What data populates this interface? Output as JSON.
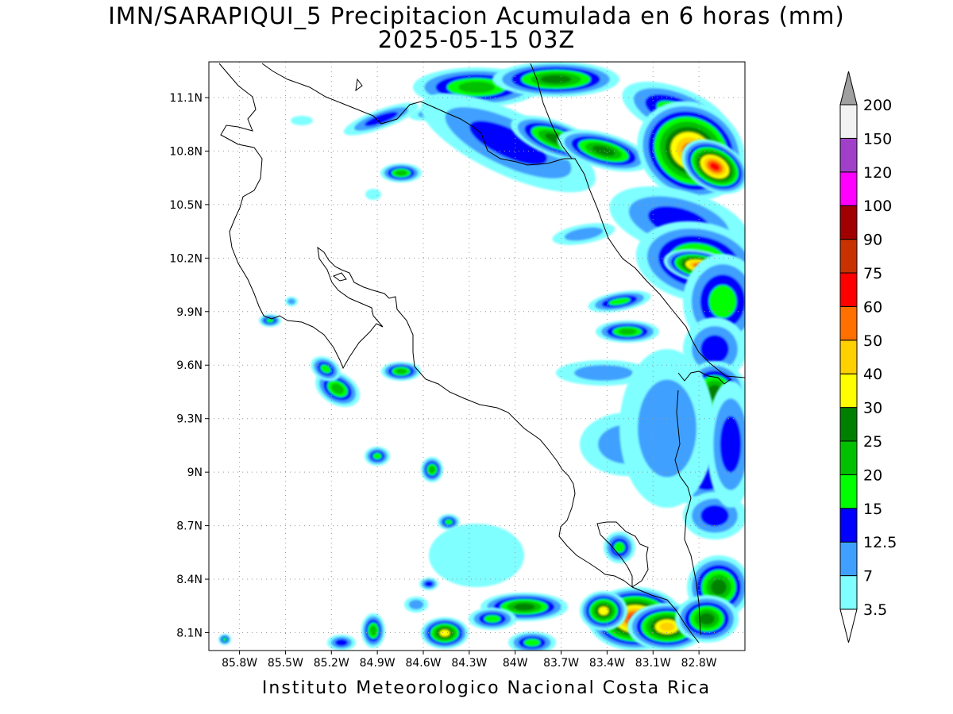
{
  "title": {
    "line1": "IMN/SARAPIQUI_5 Precipitacion Acumulada en 6 horas (mm)",
    "line2": "2025-05-15 03Z"
  },
  "footer": "Instituto Meteorologico Nacional Costa Rica",
  "map": {
    "lon_range": [
      -86.0,
      -82.5
    ],
    "lat_range": [
      8.0,
      11.3
    ],
    "lat_ticks": [
      "11.1N",
      "10.8N",
      "10.5N",
      "10.2N",
      "9.9N",
      "9.6N",
      "9.3N",
      "9N",
      "8.7N",
      "8.4N",
      "8.1N"
    ],
    "lat_values": [
      11.1,
      10.8,
      10.5,
      10.2,
      9.9,
      9.6,
      9.3,
      9.0,
      8.7,
      8.4,
      8.1
    ],
    "lon_ticks": [
      "85.8W",
      "85.5W",
      "85.2W",
      "84.9W",
      "84.6W",
      "84.3W",
      "84W",
      "83.7W",
      "83.4W",
      "83.1W",
      "82.8W"
    ],
    "lon_values": [
      -85.8,
      -85.5,
      -85.2,
      -84.9,
      -84.6,
      -84.3,
      -84.0,
      -83.7,
      -83.4,
      -83.1,
      -82.8
    ],
    "grid": "dotted"
  },
  "colorbar": {
    "labels": [
      "3.5",
      "7",
      "12.5",
      "15",
      "20",
      "25",
      "30",
      "40",
      "50",
      "60",
      "75",
      "90",
      "100",
      "120",
      "150",
      "200"
    ],
    "colors": [
      "#7fffff",
      "#3fa0ff",
      "#0000ff",
      "#00ff00",
      "#00c000",
      "#008000",
      "#ffff00",
      "#ffd000",
      "#ff7000",
      "#ff0000",
      "#c83200",
      "#a00000",
      "#ff00ff",
      "#a040c8",
      "#f2f2f2"
    ],
    "triangle_low": "#ffffff",
    "triangle_high": "#a0a0a0"
  }
}
